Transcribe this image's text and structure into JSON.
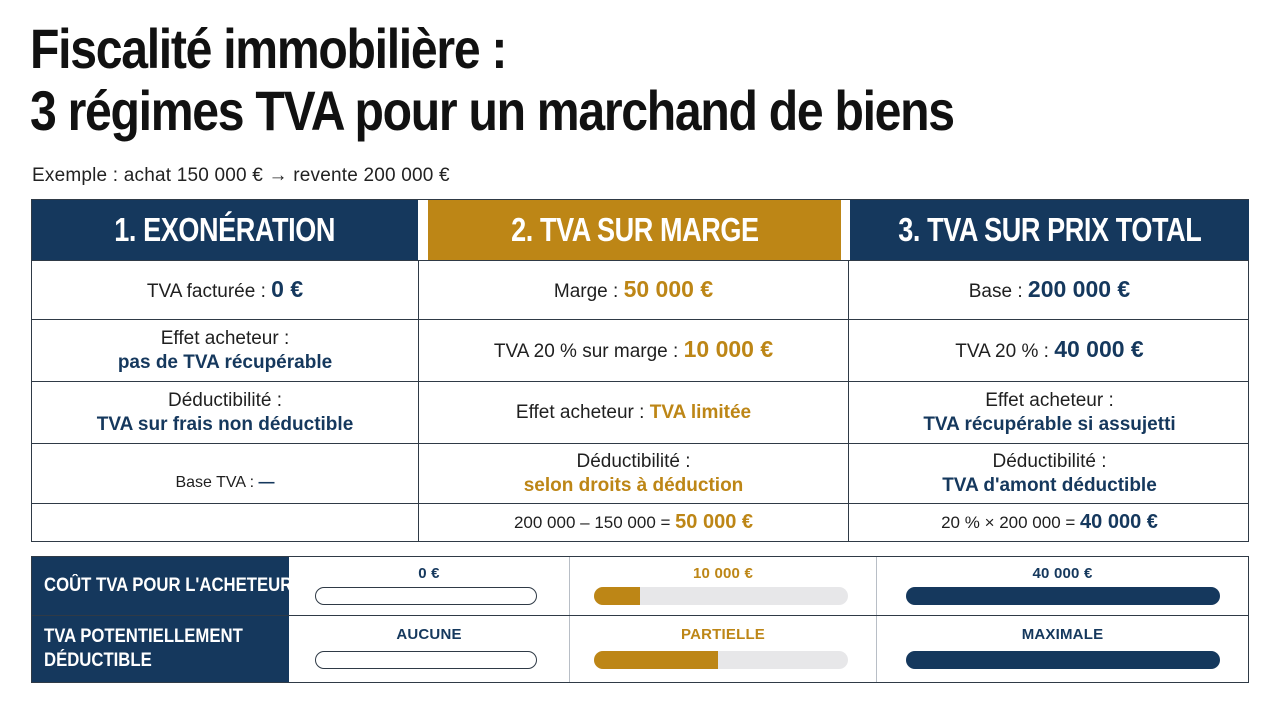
{
  "title": {
    "line1": "Fiscalité immobilière :",
    "line2": "3 régimes TVA pour un marchand de biens"
  },
  "subtitle": "Exemple : achat 150 000 € → revente 200 000 €",
  "colors": {
    "navy": "#15385d",
    "gold": "#bd8616"
  },
  "columns": [
    {
      "header": "1. EXONÉRATION"
    },
    {
      "header": "2. TVA SUR MARGE"
    },
    {
      "header": "3. TVA SUR PRIX TOTAL"
    }
  ],
  "rows": [
    {
      "c1": {
        "label": "TVA facturée : ",
        "value": "0 €"
      },
      "c2": {
        "label": "Marge : ",
        "value": "50 000 €"
      },
      "c3": {
        "label": "Base : ",
        "value": "200 000 €"
      }
    },
    {
      "c1": {
        "label": "Effet acheteur :",
        "value": "pas de TVA récupérable"
      },
      "c2": {
        "label": "TVA 20 % sur marge : ",
        "value": "10 000 €"
      },
      "c3": {
        "label": "TVA 20 % : ",
        "value": "40 000 €"
      }
    },
    {
      "c1": {
        "label": "Déductibilité :",
        "value": "TVA sur frais non déductible"
      },
      "c2": {
        "label": "Effet acheteur : ",
        "value": "TVA limitée"
      },
      "c3": {
        "label": "Effet acheteur :",
        "value": "TVA récupérable si assujetti"
      }
    },
    {
      "c1": {
        "label": "Base TVA : ",
        "value": "—"
      },
      "c2": {
        "label": "Déductibilité :",
        "value": "selon droits à déduction"
      },
      "c3": {
        "label": "Déductibilité :",
        "value": "TVA d'amont déductible"
      }
    },
    {
      "c1": {
        "label": "",
        "value": ""
      },
      "c2": {
        "label": "200 000 – 150 000 = ",
        "value": "50 000 €"
      },
      "c3": {
        "label": "20 % × 200 000 = ",
        "value": "40 000 €"
      }
    }
  ],
  "comparison": {
    "rows": [
      {
        "label_line1": "COÛT TVA POUR L'ACHETEUR",
        "label_line2": "",
        "cells": [
          {
            "text": "0 €",
            "level": 0
          },
          {
            "text": "10 000 €",
            "level": 0.18
          },
          {
            "text": "40 000 €",
            "level": 1
          }
        ]
      },
      {
        "label_line1": "TVA POTENTIELLEMENT",
        "label_line2": "DÉDUCTIBLE",
        "cells": [
          {
            "text": "AUCUNE",
            "level": 0
          },
          {
            "text": "PARTIELLE",
            "level": 0.49
          },
          {
            "text": "MAXIMALE",
            "level": 1
          }
        ]
      }
    ]
  }
}
